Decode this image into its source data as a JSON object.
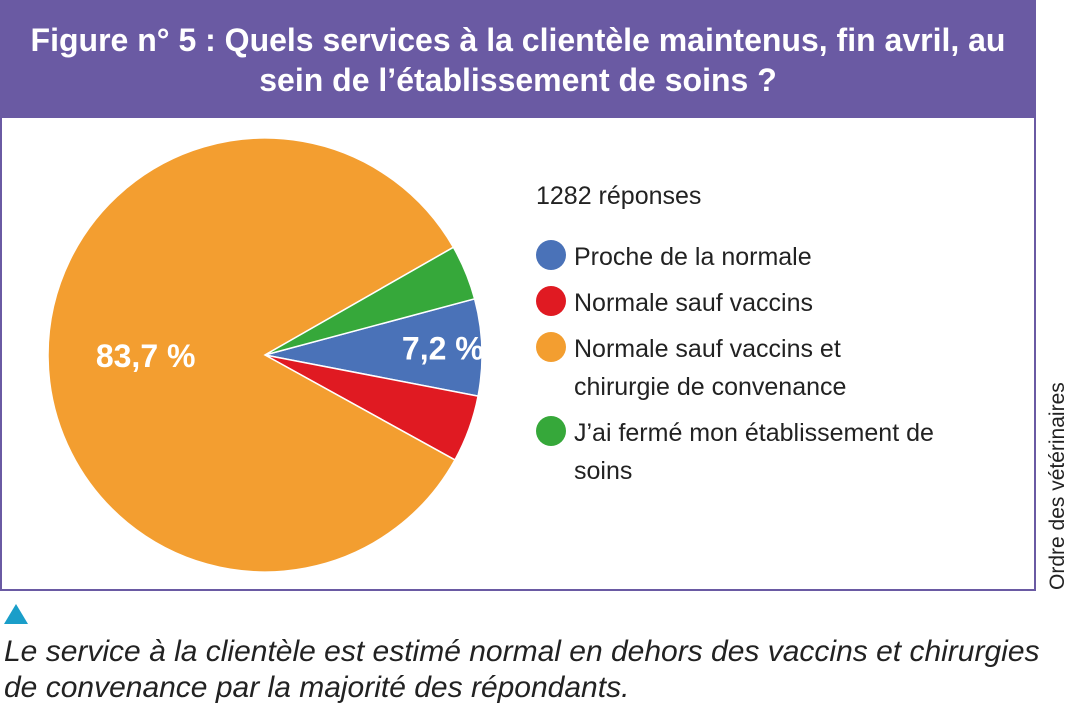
{
  "figure": {
    "title": "Figure n° 5 : Quels services à la clientèle maintenus, fin avril, au sein de l’établissement de soins ?"
  },
  "chart_data": {
    "type": "pie",
    "title": "Figure n° 5 : Quels services à la clientèle maintenus, fin avril, au sein de l’établissement de soins ?",
    "subtitle": "1282 réponses",
    "slices": [
      {
        "name": "Proche de la normale",
        "value": 7.2,
        "label": "7,2 %",
        "color": "#4a72b8"
      },
      {
        "name": "Normale sauf vaccins",
        "value": 5.0,
        "label": "",
        "color": "#e01a22"
      },
      {
        "name": "Normale sauf vaccins et chirurgie de convenance",
        "value": 83.7,
        "label": "83,7 %",
        "color": "#f39e30"
      },
      {
        "name": "J’ai fermé mon établissement de soins",
        "value": 4.1,
        "label": "",
        "color": "#36a83a"
      }
    ],
    "legend_position": "right",
    "legend": {
      "count": "1282 réponses",
      "items": [
        {
          "label": "Proche de la normale",
          "color": "#4a72b8"
        },
        {
          "label": "Normale sauf vaccins",
          "color": "#e01a22"
        },
        {
          "label": "Normale sauf vaccins et chirurgie de convenance",
          "color": "#f39e30"
        },
        {
          "label": "J’ai fermé mon établissement de soins",
          "color": "#36a83a"
        }
      ]
    }
  },
  "credit": "Ordre des vétérinaires",
  "caption": "Le service à la clientèle est estimé normal en dehors des vaccins et chirurgies de convenance par la majorité des répondants.",
  "colors": {
    "header": "#6a5aa3",
    "marker": "#1a9ec9"
  }
}
